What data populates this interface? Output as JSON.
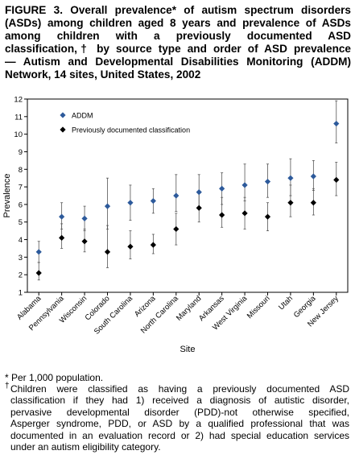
{
  "figure": {
    "title_lines": [
      "FIGURE 3. Overall prevalence* of autism spectrum disorders",
      "(ASDs) among children aged 8 years and prevalence of ASDs",
      "among children with a previously documented ASD",
      "classification,† by source type and order of ASD prevalence",
      "— Autism and Developmental Disabilities Monitoring (ADDM)",
      "Network, 14 sites, United States, 2002"
    ]
  },
  "footnotes": {
    "note1": "* Per 1,000 population.",
    "note2_mark": "†",
    "note2_lines": [
      "Children were classified as having a previously documented ASD",
      "classification if they had 1) received a diagnosis of autistic disorder,",
      "pervasive developmental disorder (PDD)-not otherwise specified,",
      "Asperger syndrome, PDD, or ASD by a qualified professional that was",
      "documented in an evaluation record or 2) had special education services",
      "under an autism eligibility category."
    ]
  },
  "chart_data": {
    "type": "scatter",
    "xlabel": "Site",
    "ylabel": "Prevalence",
    "ylim": [
      1,
      12
    ],
    "yticks": [
      "1",
      "2",
      "3",
      "4",
      "5",
      "6",
      "7",
      "8",
      "9",
      "10",
      "11",
      "12"
    ],
    "categories": [
      "Alabama",
      "Pennsylvania",
      "Wisconsin",
      "Colorado",
      "South Carolina",
      "Arizona",
      "North Carolina",
      "Maryland",
      "Arkansas",
      "West Virginia",
      "Missouri",
      "Utah",
      "Georgia",
      "New Jersey"
    ],
    "legend_position": "top-left",
    "grid": false,
    "series": [
      {
        "name": "ADDM",
        "marker": "diamond",
        "color": "#2d5a9b",
        "values": [
          3.3,
          5.3,
          5.2,
          5.9,
          6.1,
          6.2,
          6.5,
          6.7,
          6.9,
          7.1,
          7.3,
          7.5,
          7.6,
          10.6
        ],
        "lower": [
          2.7,
          4.6,
          4.5,
          4.6,
          5.1,
          5.5,
          5.6,
          5.8,
          6.0,
          6.2,
          6.4,
          6.5,
          6.8,
          9.5
        ],
        "upper": [
          3.9,
          6.1,
          5.9,
          7.5,
          7.1,
          6.9,
          7.7,
          7.7,
          7.8,
          8.3,
          8.3,
          8.6,
          8.5,
          11.9
        ]
      },
      {
        "name": "Previously documented classification",
        "marker": "diamond",
        "color": "#000000",
        "values": [
          2.1,
          4.1,
          3.9,
          3.3,
          3.6,
          3.7,
          4.6,
          5.8,
          5.4,
          5.5,
          5.3,
          6.1,
          6.1,
          7.4
        ],
        "lower": [
          1.7,
          3.5,
          3.3,
          2.4,
          2.9,
          3.2,
          3.7,
          5.0,
          4.7,
          4.6,
          4.5,
          5.3,
          5.4,
          6.5
        ],
        "upper": [
          2.7,
          4.9,
          4.6,
          4.8,
          4.5,
          4.3,
          5.5,
          6.7,
          6.4,
          6.4,
          6.1,
          7.1,
          6.9,
          8.4
        ]
      }
    ]
  }
}
